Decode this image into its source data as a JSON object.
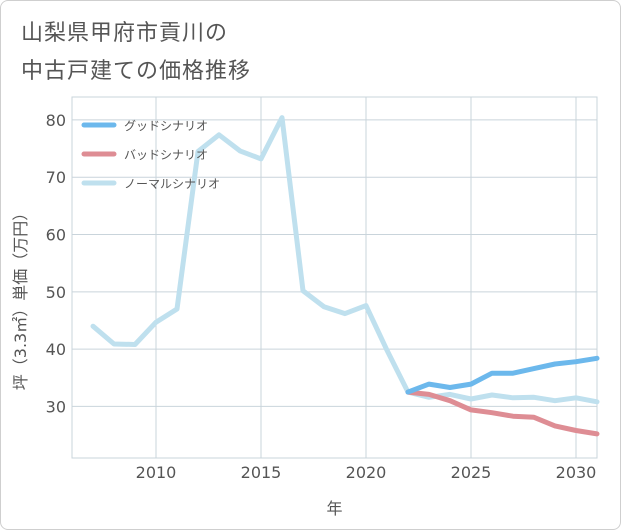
{
  "title": {
    "line1": "山梨県甲府市貢川の",
    "line2": "中古戸建ての価格推移"
  },
  "chart_data": {
    "type": "line",
    "xlabel": "年",
    "ylabel": "坪（3.3㎡）単価（万円）",
    "xlim": [
      2006,
      2031
    ],
    "ylim": [
      21,
      84
    ],
    "xticks": [
      2010,
      2015,
      2020,
      2025,
      2030
    ],
    "yticks": [
      30,
      40,
      50,
      60,
      70,
      80
    ],
    "grid": true,
    "legend_position": "top-left",
    "series": [
      {
        "name": "グッドシナリオ",
        "color": "#6cb8ec",
        "x": [
          2022,
          2023,
          2024,
          2025,
          2026,
          2027,
          2028,
          2029,
          2030,
          2031
        ],
        "values": [
          32.5,
          33.9,
          33.3,
          33.9,
          35.8,
          35.8,
          36.6,
          37.4,
          37.8,
          38.4
        ]
      },
      {
        "name": "バッドシナリオ",
        "color": "#de8d94",
        "x": [
          2022,
          2023,
          2024,
          2025,
          2026,
          2027,
          2028,
          2029,
          2030,
          2031
        ],
        "values": [
          32.5,
          32.1,
          31.0,
          29.4,
          28.9,
          28.3,
          28.1,
          26.6,
          25.8,
          25.2
        ]
      },
      {
        "name": "ノーマルシナリオ",
        "color": "#bfe0ee",
        "x": [
          2007,
          2008,
          2009,
          2010,
          2011,
          2012,
          2013,
          2014,
          2015,
          2016,
          2017,
          2018,
          2019,
          2020,
          2021,
          2022,
          2023,
          2024,
          2025,
          2026,
          2027,
          2028,
          2029,
          2030,
          2031
        ],
        "values": [
          44.0,
          40.9,
          40.8,
          44.7,
          47.0,
          74.5,
          77.4,
          74.6,
          73.2,
          80.4,
          50.2,
          47.4,
          46.2,
          47.6,
          39.8,
          32.5,
          31.6,
          32.1,
          31.3,
          32.0,
          31.5,
          31.6,
          31.0,
          31.5,
          30.8
        ]
      }
    ]
  }
}
